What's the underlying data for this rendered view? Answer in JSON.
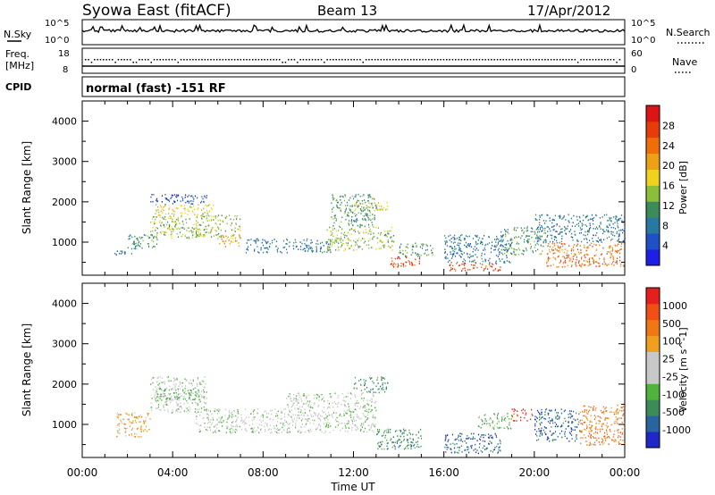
{
  "header": {
    "station": "Syowa East (fitACF)",
    "beam": "Beam 13",
    "date": "17/Apr/2012"
  },
  "top_panels": {
    "nsky_label": "N.Sky",
    "nsky_ticks": [
      "10^5",
      "10^0"
    ],
    "nsearch_label": "N.Search",
    "nsearch_ticks": [
      "10^5",
      "10^0"
    ],
    "freq_label": "Freq.",
    "freq_unit": "[MHz]",
    "freq_ticks": [
      "18",
      "8"
    ],
    "nave_label": "Nave",
    "nave_ticks": [
      "60",
      "0"
    ],
    "cpid_label": "CPID",
    "cpid_text": "normal (fast) -151 RF"
  },
  "chart_data": [
    {
      "type": "heatmap",
      "name": "power-panel",
      "ylabel": "Slant Range [km]",
      "xlabel": "",
      "x_ticks": [
        "00:00",
        "04:00",
        "08:00",
        "12:00",
        "16:00",
        "20:00",
        "00:00"
      ],
      "x_range_hours": [
        0,
        24
      ],
      "y_ticks": [
        "1000",
        "2000",
        "3000",
        "4000"
      ],
      "y_tick_values": [
        1000,
        2000,
        3000,
        4000
      ],
      "ylim": [
        180,
        4500
      ],
      "colorbar": {
        "label": "Power [dB]",
        "ticks": [
          "4",
          "8",
          "12",
          "16",
          "20",
          "24",
          "28"
        ],
        "colors": [
          "#1e1ee6",
          "#1e50c8",
          "#2878a0",
          "#3c8c5a",
          "#8cbe3c",
          "#f0d21e",
          "#f0a014",
          "#f06e0a",
          "#e63c0a",
          "#dc1414"
        ]
      },
      "regions": [
        {
          "t0": 1.3,
          "t1": 2.2,
          "r0": 700,
          "r1": 800,
          "level": 2
        },
        {
          "t0": 2.0,
          "t1": 3.3,
          "r0": 850,
          "r1": 1200,
          "level": 3
        },
        {
          "t0": 3.0,
          "t1": 5.2,
          "r0": 1100,
          "r1": 1650,
          "level": 4
        },
        {
          "t0": 3.2,
          "t1": 5.8,
          "r0": 1650,
          "r1": 1950,
          "level": 5
        },
        {
          "t0": 3.0,
          "t1": 5.5,
          "r0": 1950,
          "r1": 2200,
          "level": 1
        },
        {
          "t0": 5.0,
          "t1": 7.0,
          "r0": 1100,
          "r1": 1700,
          "level": 4
        },
        {
          "t0": 6.0,
          "t1": 7.0,
          "r0": 900,
          "r1": 1200,
          "level": 6
        },
        {
          "t0": 7.2,
          "t1": 11.0,
          "r0": 750,
          "r1": 1100,
          "level": 2
        },
        {
          "t0": 10.8,
          "t1": 13.8,
          "r0": 800,
          "r1": 1400,
          "level": 4
        },
        {
          "t0": 11.0,
          "t1": 13.0,
          "r0": 1400,
          "r1": 2200,
          "level": 3
        },
        {
          "t0": 12.0,
          "t1": 13.5,
          "r0": 1800,
          "r1": 2000,
          "level": 5
        },
        {
          "t0": 13.6,
          "t1": 15.0,
          "r0": 400,
          "r1": 650,
          "level": 8
        },
        {
          "t0": 14.0,
          "t1": 15.5,
          "r0": 650,
          "r1": 1000,
          "level": 3
        },
        {
          "t0": 16.2,
          "t1": 18.5,
          "r0": 300,
          "r1": 500,
          "level": 8
        },
        {
          "t0": 16.0,
          "t1": 19.0,
          "r0": 500,
          "r1": 1200,
          "level": 2
        },
        {
          "t0": 18.5,
          "t1": 20.5,
          "r0": 700,
          "r1": 1400,
          "level": 3
        },
        {
          "t0": 20.5,
          "t1": 24.0,
          "r0": 400,
          "r1": 1000,
          "level": 7
        },
        {
          "t0": 20.0,
          "t1": 24.0,
          "r0": 1000,
          "r1": 1700,
          "level": 2
        }
      ]
    },
    {
      "type": "heatmap",
      "name": "velocity-panel",
      "ylabel": "Slant Range [km]",
      "xlabel": "Time UT",
      "x_ticks": [
        "00:00",
        "04:00",
        "08:00",
        "12:00",
        "16:00",
        "20:00",
        "00:00"
      ],
      "x_range_hours": [
        0,
        24
      ],
      "y_ticks": [
        "1000",
        "2000",
        "3000",
        "4000"
      ],
      "y_tick_values": [
        1000,
        2000,
        3000,
        4000
      ],
      "ylim": [
        180,
        4500
      ],
      "colorbar": {
        "label": "Velocity [m s^-1]",
        "unit_exponent": "-1",
        "ticks": [
          "1000",
          "500",
          "100",
          "25",
          "-25",
          "-100",
          "-500",
          "-1000"
        ],
        "colors": [
          "#1e28c8",
          "#2864a0",
          "#3c8c5a",
          "#50b43c",
          "#c8c8c8",
          "#c8c8c8",
          "#f0a01e",
          "#f07814",
          "#f05014",
          "#e61e1e"
        ]
      },
      "regions": [
        {
          "t0": 1.5,
          "t1": 3.0,
          "r0": 700,
          "r1": 1300,
          "level": 6
        },
        {
          "t0": 3.0,
          "t1": 5.5,
          "r0": 1300,
          "r1": 2200,
          "level": 4
        },
        {
          "t0": 3.2,
          "t1": 5.5,
          "r0": 1600,
          "r1": 1900,
          "level": 3
        },
        {
          "t0": 5.0,
          "t1": 9.0,
          "r0": 800,
          "r1": 1400,
          "level": 4
        },
        {
          "t0": 9.0,
          "t1": 13.0,
          "r0": 800,
          "r1": 1800,
          "level": 4
        },
        {
          "t0": 12.0,
          "t1": 13.5,
          "r0": 1800,
          "r1": 2200,
          "level": 2
        },
        {
          "t0": 13.0,
          "t1": 15.0,
          "r0": 400,
          "r1": 900,
          "level": 2
        },
        {
          "t0": 16.0,
          "t1": 18.5,
          "r0": 300,
          "r1": 800,
          "level": 1
        },
        {
          "t0": 17.5,
          "t1": 19.0,
          "r0": 900,
          "r1": 1300,
          "level": 3
        },
        {
          "t0": 19.0,
          "t1": 20.0,
          "r0": 1100,
          "r1": 1400,
          "level": 9
        },
        {
          "t0": 20.0,
          "t1": 22.0,
          "r0": 600,
          "r1": 1400,
          "level": 1
        },
        {
          "t0": 22.0,
          "t1": 24.0,
          "r0": 500,
          "r1": 1500,
          "level": 7
        }
      ]
    }
  ]
}
